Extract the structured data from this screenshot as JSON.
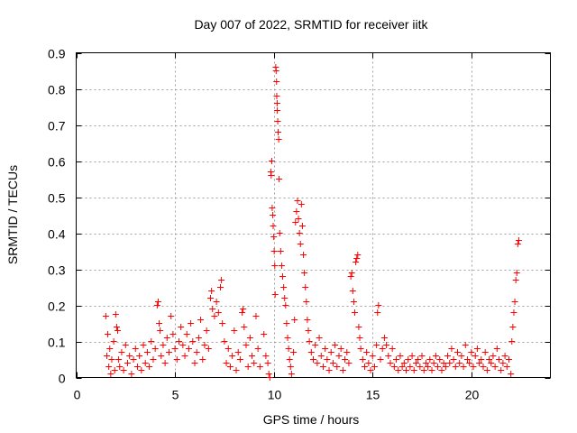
{
  "chart_data": {
    "type": "scatter",
    "title": "Day 007 of 2022, SRMTID for receiver iitk",
    "xlabel": "GPS time / hours",
    "ylabel": "SRMTID / TECUs",
    "xlim": [
      0,
      24
    ],
    "ylim": [
      0,
      0.9
    ],
    "xticks": [
      0,
      5,
      10,
      15,
      20
    ],
    "xtick_labels": [
      "0",
      "5",
      "10",
      "15",
      "20"
    ],
    "yticks": [
      0,
      0.1,
      0.2,
      0.3,
      0.4,
      0.5,
      0.6,
      0.7,
      0.8,
      0.9
    ],
    "ytick_labels": [
      "0",
      "0.1",
      "0.2",
      "0.3",
      "0.4",
      "0.5",
      "0.6",
      "0.7",
      "0.8",
      "0.9"
    ],
    "grid": true,
    "marker": "plus",
    "color": "#ff0000",
    "series": [
      {
        "name": "SRMTID",
        "points": [
          [
            1.5,
            0.17
          ],
          [
            1.55,
            0.06
          ],
          [
            1.6,
            0.12
          ],
          [
            1.65,
            0.03
          ],
          [
            1.7,
            0.08
          ],
          [
            1.75,
            0.01
          ],
          [
            1.8,
            0.05
          ],
          [
            1.9,
            0.1
          ],
          [
            1.95,
            0.02
          ],
          [
            2.0,
            0.175
          ],
          [
            2.05,
            0.14
          ],
          [
            2.1,
            0.13
          ],
          [
            2.15,
            0.05
          ],
          [
            2.2,
            0.03
          ],
          [
            2.3,
            0.07
          ],
          [
            2.4,
            0.02
          ],
          [
            2.5,
            0.09
          ],
          [
            2.6,
            0.04
          ],
          [
            2.7,
            0.06
          ],
          [
            2.8,
            0.01
          ],
          [
            2.9,
            0.05
          ],
          [
            3.0,
            0.08
          ],
          [
            3.1,
            0.03
          ],
          [
            3.2,
            0.06
          ],
          [
            3.3,
            0.02
          ],
          [
            3.4,
            0.09
          ],
          [
            3.5,
            0.04
          ],
          [
            3.6,
            0.07
          ],
          [
            3.7,
            0.03
          ],
          [
            3.8,
            0.1
          ],
          [
            3.9,
            0.05
          ],
          [
            4.0,
            0.08
          ],
          [
            4.1,
            0.2
          ],
          [
            4.15,
            0.21
          ],
          [
            4.2,
            0.15
          ],
          [
            4.25,
            0.13
          ],
          [
            4.3,
            0.06
          ],
          [
            4.4,
            0.09
          ],
          [
            4.5,
            0.04
          ],
          [
            4.6,
            0.11
          ],
          [
            4.7,
            0.07
          ],
          [
            4.8,
            0.17
          ],
          [
            4.9,
            0.12
          ],
          [
            5.0,
            0.08
          ],
          [
            5.1,
            0.05
          ],
          [
            5.2,
            0.1
          ],
          [
            5.3,
            0.14
          ],
          [
            5.4,
            0.09
          ],
          [
            5.5,
            0.06
          ],
          [
            5.6,
            0.12
          ],
          [
            5.7,
            0.08
          ],
          [
            5.8,
            0.15
          ],
          [
            5.9,
            0.1
          ],
          [
            6.0,
            0.04
          ],
          [
            6.1,
            0.07
          ],
          [
            6.2,
            0.11
          ],
          [
            6.3,
            0.16
          ],
          [
            6.4,
            0.05
          ],
          [
            6.5,
            0.09
          ],
          [
            6.6,
            0.13
          ],
          [
            6.7,
            0.08
          ],
          [
            6.8,
            0.22
          ],
          [
            6.85,
            0.24
          ],
          [
            6.9,
            0.19
          ],
          [
            7.0,
            0.17
          ],
          [
            7.1,
            0.21
          ],
          [
            7.2,
            0.18
          ],
          [
            7.3,
            0.25
          ],
          [
            7.35,
            0.27
          ],
          [
            7.4,
            0.15
          ],
          [
            7.5,
            0.1
          ],
          [
            7.6,
            0.04
          ],
          [
            7.7,
            0.08
          ],
          [
            7.8,
            0.03
          ],
          [
            7.9,
            0.06
          ],
          [
            8.0,
            0.13
          ],
          [
            8.1,
            0.02
          ],
          [
            8.2,
            0.07
          ],
          [
            8.3,
            0.05
          ],
          [
            8.4,
            0.18
          ],
          [
            8.45,
            0.19
          ],
          [
            8.5,
            0.14
          ],
          [
            8.6,
            0.09
          ],
          [
            8.7,
            0.03
          ],
          [
            8.8,
            0.11
          ],
          [
            8.9,
            0.06
          ],
          [
            9.0,
            0.04
          ],
          [
            9.1,
            0.17
          ],
          [
            9.2,
            0.08
          ],
          [
            9.3,
            0.03
          ],
          [
            9.5,
            0.12
          ],
          [
            9.6,
            0.06
          ],
          [
            9.7,
            0.04
          ],
          [
            9.75,
            0.01
          ],
          [
            9.8,
            0.0
          ],
          [
            9.85,
            0.57
          ],
          [
            9.87,
            0.56
          ],
          [
            9.9,
            0.6
          ],
          [
            9.92,
            0.47
          ],
          [
            9.95,
            0.45
          ],
          [
            9.97,
            0.42
          ],
          [
            10.0,
            0.39
          ],
          [
            10.02,
            0.35
          ],
          [
            10.05,
            0.31
          ],
          [
            10.07,
            0.23
          ],
          [
            10.1,
            0.86
          ],
          [
            10.12,
            0.85
          ],
          [
            10.14,
            0.82
          ],
          [
            10.15,
            0.78
          ],
          [
            10.17,
            0.76
          ],
          [
            10.18,
            0.74
          ],
          [
            10.2,
            0.71
          ],
          [
            10.22,
            0.68
          ],
          [
            10.25,
            0.66
          ],
          [
            10.27,
            0.55
          ],
          [
            10.3,
            0.4
          ],
          [
            10.35,
            0.35
          ],
          [
            10.4,
            0.31
          ],
          [
            10.45,
            0.28
          ],
          [
            10.5,
            0.25
          ],
          [
            10.55,
            0.22
          ],
          [
            10.6,
            0.2
          ],
          [
            10.65,
            0.15
          ],
          [
            10.7,
            0.11
          ],
          [
            10.75,
            0.08
          ],
          [
            10.8,
            0.05
          ],
          [
            10.85,
            0.03
          ],
          [
            10.9,
            0.01
          ],
          [
            11.0,
            0.07
          ],
          [
            11.05,
            0.16
          ],
          [
            11.1,
            0.43
          ],
          [
            11.15,
            0.46
          ],
          [
            11.2,
            0.49
          ],
          [
            11.25,
            0.44
          ],
          [
            11.3,
            0.4
          ],
          [
            11.35,
            0.37
          ],
          [
            11.4,
            0.48
          ],
          [
            11.45,
            0.42
          ],
          [
            11.5,
            0.34
          ],
          [
            11.55,
            0.29
          ],
          [
            11.6,
            0.25
          ],
          [
            11.65,
            0.21
          ],
          [
            11.7,
            0.16
          ],
          [
            11.75,
            0.13
          ],
          [
            11.8,
            0.1
          ],
          [
            11.9,
            0.07
          ],
          [
            12.0,
            0.05
          ],
          [
            12.1,
            0.09
          ],
          [
            12.2,
            0.04
          ],
          [
            12.3,
            0.11
          ],
          [
            12.4,
            0.06
          ],
          [
            12.5,
            0.03
          ],
          [
            12.6,
            0.08
          ],
          [
            12.7,
            0.05
          ],
          [
            12.8,
            0.02
          ],
          [
            12.9,
            0.07
          ],
          [
            13.0,
            0.04
          ],
          [
            13.1,
            0.09
          ],
          [
            13.2,
            0.03
          ],
          [
            13.3,
            0.06
          ],
          [
            13.4,
            0.08
          ],
          [
            13.5,
            0.02
          ],
          [
            13.6,
            0.05
          ],
          [
            13.7,
            0.07
          ],
          [
            13.8,
            0.04
          ],
          [
            13.9,
            0.28
          ],
          [
            13.95,
            0.29
          ],
          [
            14.0,
            0.24
          ],
          [
            14.05,
            0.21
          ],
          [
            14.1,
            0.18
          ],
          [
            14.15,
            0.32
          ],
          [
            14.2,
            0.33
          ],
          [
            14.25,
            0.34
          ],
          [
            14.3,
            0.14
          ],
          [
            14.35,
            0.11
          ],
          [
            14.4,
            0.08
          ],
          [
            14.5,
            0.05
          ],
          [
            14.6,
            0.03
          ],
          [
            14.7,
            0.07
          ],
          [
            14.8,
            0.04
          ],
          [
            14.9,
            0.02
          ],
          [
            15.0,
            0.06
          ],
          [
            15.1,
            0.03
          ],
          [
            15.2,
            0.09
          ],
          [
            15.25,
            0.18
          ],
          [
            15.3,
            0.2
          ],
          [
            15.4,
            0.05
          ],
          [
            15.5,
            0.08
          ],
          [
            15.6,
            0.11
          ],
          [
            15.7,
            0.09
          ],
          [
            15.8,
            0.06
          ],
          [
            15.9,
            0.04
          ],
          [
            16.0,
            0.08
          ],
          [
            16.1,
            0.03
          ],
          [
            16.2,
            0.05
          ],
          [
            16.3,
            0.02
          ],
          [
            16.4,
            0.06
          ],
          [
            16.5,
            0.03
          ],
          [
            16.6,
            0.04
          ],
          [
            16.7,
            0.02
          ],
          [
            16.8,
            0.05
          ],
          [
            16.9,
            0.03
          ],
          [
            17.0,
            0.06
          ],
          [
            17.1,
            0.02
          ],
          [
            17.2,
            0.04
          ],
          [
            17.3,
            0.05
          ],
          [
            17.4,
            0.03
          ],
          [
            17.5,
            0.06
          ],
          [
            17.6,
            0.02
          ],
          [
            17.7,
            0.04
          ],
          [
            17.8,
            0.03
          ],
          [
            17.9,
            0.05
          ],
          [
            18.0,
            0.02
          ],
          [
            18.1,
            0.04
          ],
          [
            18.2,
            0.06
          ],
          [
            18.3,
            0.03
          ],
          [
            18.4,
            0.05
          ],
          [
            18.5,
            0.02
          ],
          [
            18.6,
            0.04
          ],
          [
            18.7,
            0.03
          ],
          [
            18.8,
            0.06
          ],
          [
            18.9,
            0.04
          ],
          [
            19.0,
            0.08
          ],
          [
            19.1,
            0.05
          ],
          [
            19.2,
            0.03
          ],
          [
            19.3,
            0.07
          ],
          [
            19.4,
            0.04
          ],
          [
            19.5,
            0.06
          ],
          [
            19.6,
            0.03
          ],
          [
            19.7,
            0.09
          ],
          [
            19.8,
            0.05
          ],
          [
            19.9,
            0.04
          ],
          [
            20.0,
            0.07
          ],
          [
            20.1,
            0.03
          ],
          [
            20.2,
            0.06
          ],
          [
            20.3,
            0.08
          ],
          [
            20.4,
            0.04
          ],
          [
            20.5,
            0.05
          ],
          [
            20.6,
            0.03
          ],
          [
            20.7,
            0.07
          ],
          [
            20.8,
            0.02
          ],
          [
            20.9,
            0.05
          ],
          [
            21.0,
            0.04
          ],
          [
            21.1,
            0.06
          ],
          [
            21.2,
            0.03
          ],
          [
            21.3,
            0.08
          ],
          [
            21.4,
            0.05
          ],
          [
            21.5,
            0.02
          ],
          [
            21.6,
            0.04
          ],
          [
            21.7,
            0.06
          ],
          [
            21.8,
            0.03
          ],
          [
            21.9,
            0.05
          ],
          [
            22.0,
            0.01
          ],
          [
            22.05,
            0.1
          ],
          [
            22.1,
            0.14
          ],
          [
            22.15,
            0.18
          ],
          [
            22.2,
            0.21
          ],
          [
            22.25,
            0.27
          ],
          [
            22.3,
            0.29
          ],
          [
            22.35,
            0.37
          ],
          [
            22.4,
            0.38
          ]
        ]
      }
    ]
  }
}
